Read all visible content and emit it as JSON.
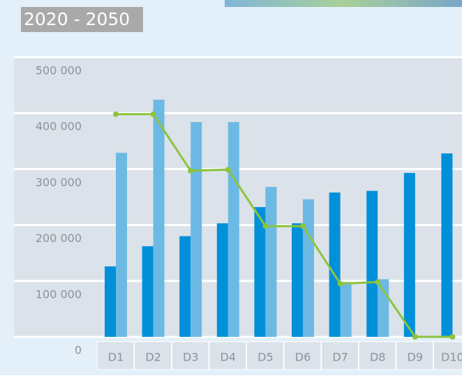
{
  "chart_data": {
    "type": "bar",
    "title": "2020 - 2050",
    "categories": [
      "D1",
      "D2",
      "D3",
      "D4",
      "D5",
      "D6",
      "D7",
      "D8",
      "D9",
      "D10"
    ],
    "series": [
      {
        "type": "bar",
        "color": "#0090d9",
        "values": [
          126000,
          162000,
          180000,
          203000,
          232000,
          203000,
          258000,
          261000,
          293000,
          328000
        ]
      },
      {
        "type": "bar",
        "color": "#6cb9e4",
        "values": [
          329000,
          424000,
          384000,
          384000,
          268000,
          246000,
          98000,
          103000,
          null,
          null
        ]
      },
      {
        "type": "line",
        "color": "#8cc43c",
        "values": [
          398000,
          398000,
          297000,
          299000,
          198000,
          198000,
          95000,
          98000,
          0,
          0
        ]
      }
    ],
    "ylim": [
      0,
      500000
    ],
    "yticks": [
      {
        "value": 0,
        "label": "0"
      },
      {
        "value": 100000,
        "label": "100 000"
      },
      {
        "value": 200000,
        "label": "200 000"
      },
      {
        "value": 300000,
        "label": "300 000"
      },
      {
        "value": 400000,
        "label": "400 000"
      },
      {
        "value": 500000,
        "label": "500 000"
      }
    ],
    "grid": true
  }
}
